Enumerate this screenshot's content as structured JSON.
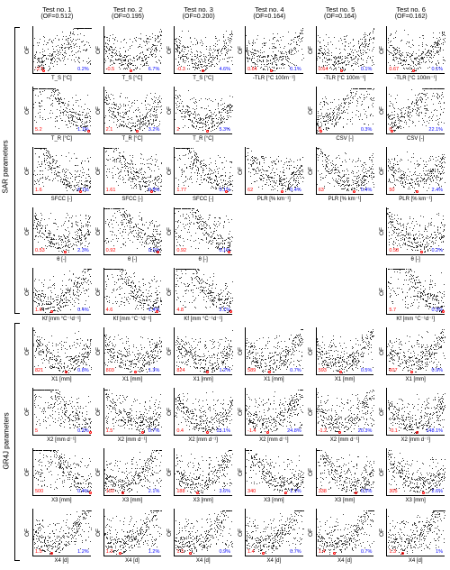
{
  "colors": {
    "red": "#ff0000",
    "blue": "#0000ff",
    "black": "#000000",
    "bg": "#ffffff"
  },
  "font": {
    "header": 7.5,
    "label": 6.5,
    "value": 5.5,
    "tick": 5
  },
  "columns": [
    {
      "title": "Test no. 1",
      "of": "(OF=0.512)"
    },
    {
      "title": "Test no. 2",
      "of": "(OF=0.195)"
    },
    {
      "title": "Test no. 3",
      "of": "(OF=0.200)"
    },
    {
      "title": "Test no. 4",
      "of": "(OF=0.164)"
    },
    {
      "title": "Test no. 5",
      "of": "(OF=0.164)"
    },
    {
      "title": "Test no. 6",
      "of": "(OF=0.162)"
    }
  ],
  "side_groups": [
    {
      "label": "SAR parameters",
      "start_row": 0,
      "end_row": 4
    },
    {
      "label": "GR4J parameters",
      "start_row": 5,
      "end_row": 8
    }
  ],
  "ylabel": "OF",
  "scatter_style": {
    "n_points": 350,
    "shape": "u-funnel"
  },
  "rows": [
    {
      "param": "Ts",
      "cells": [
        {
          "xlabel": "T_S [°C]",
          "red": "-2.5",
          "blue": "0.2%",
          "xlim": [
            -2.5,
            2
          ],
          "ticks": [
            "-2",
            "0",
            "2"
          ],
          "red_pos": 0.15
        },
        {
          "xlabel": "T_S [°C]",
          "red": "-0.5",
          "blue": "6.7%",
          "xlim": [
            -2.5,
            2
          ],
          "ticks": [
            "-2",
            "0",
            "2"
          ],
          "red_pos": 0.45
        },
        {
          "xlabel": "T_S [°C]",
          "red": "-0.3",
          "blue": "4.6%",
          "xlim": [
            -2.5,
            2
          ],
          "ticks": [
            "-2",
            "0",
            "2"
          ],
          "red_pos": 0.47
        },
        {
          "xlabel": "-TLR [°C 100m⁻¹]",
          "red": "0.64",
          "blue": "0.1%",
          "xlim": [
            0,
            1.5
          ],
          "ticks": [
            "0",
            "0.5",
            "1",
            "1.5"
          ],
          "red_pos": 0.42
        },
        {
          "xlabel": "-TLR [°C 100m⁻¹]",
          "red": "0.64",
          "blue": "0.1%",
          "xlim": [
            0,
            1.5
          ],
          "ticks": [
            "0",
            "0.5",
            "1",
            "1.5"
          ],
          "red_pos": 0.42
        },
        {
          "xlabel": "-TLR [°C 100m⁻¹]",
          "red": "0.67",
          "blue": "0.1%",
          "xlim": [
            0,
            1.5
          ],
          "ticks": [
            "0",
            "0.5",
            "1",
            "1.5"
          ],
          "red_pos": 0.44
        }
      ]
    },
    {
      "param": "Tr",
      "cells": [
        {
          "xlabel": "T_R [°C]",
          "red": "5.2",
          "blue": "1.1%",
          "xlim": [
            -2,
            5
          ],
          "ticks": [
            "-2",
            "0",
            "2",
            "4"
          ],
          "red_pos": 0.95
        },
        {
          "xlabel": "T_R [°C]",
          "red": "2.1",
          "blue": "3.2%",
          "xlim": [
            -2,
            5
          ],
          "ticks": [
            "-2",
            "0",
            "2",
            "4"
          ],
          "red_pos": 0.55
        },
        {
          "xlabel": "T_R [°C]",
          "red": "2",
          "blue": "5.3%",
          "xlim": [
            -2,
            5
          ],
          "ticks": [
            "-2",
            "0",
            "2",
            "4"
          ],
          "red_pos": 0.54
        },
        null,
        {
          "xlabel": "CSV [-]",
          "red": "0",
          "blue": "0.3%",
          "xlim": [
            0,
            1
          ],
          "ticks": [
            "0",
            "0.5",
            "1"
          ],
          "red_pos": 0.05
        },
        {
          "xlabel": "CSV [-]",
          "red": "0",
          "blue": "22.1%",
          "xlim": [
            0,
            1
          ],
          "ticks": [
            "0",
            "0.5",
            "1"
          ],
          "red_pos": 0.05
        }
      ]
    },
    {
      "param": "SFCC",
      "cells": [
        {
          "xlabel": "SFCC [-]",
          "red": "1.6",
          "blue": "0.1%",
          "xlim": [
            0,
            2
          ],
          "ticks": [
            "0",
            "1",
            "2"
          ],
          "red_pos": 0.8
        },
        {
          "xlabel": "SFCC [-]",
          "red": "1.61",
          "blue": "0.8%",
          "xlim": [
            0,
            2
          ],
          "ticks": [
            "0",
            "1",
            "2"
          ],
          "red_pos": 0.8
        },
        {
          "xlabel": "SFCC [-]",
          "red": "1.77",
          "blue": "0.1%",
          "xlim": [
            0,
            2
          ],
          "ticks": [
            "0",
            "1",
            "2"
          ],
          "red_pos": 0.87
        },
        {
          "xlabel": "PLR [% km⁻¹]",
          "red": "62",
          "blue": "0.4%",
          "xlim": [
            0,
            100
          ],
          "ticks": [
            "0",
            "50",
            "100"
          ],
          "red_pos": 0.62
        },
        {
          "xlabel": "PLR [% km⁻¹]",
          "red": "63",
          "blue": "0.4%",
          "xlim": [
            0,
            100
          ],
          "ticks": [
            "0",
            "50",
            "100"
          ],
          "red_pos": 0.63
        },
        {
          "xlabel": "PLR [% km⁻¹]",
          "red": "50",
          "blue": "2.4%",
          "xlim": [
            0,
            100
          ],
          "ticks": [
            "0",
            "50",
            "100"
          ],
          "red_pos": 0.5
        }
      ]
    },
    {
      "param": "theta",
      "cells": [
        {
          "xlabel": "θ [-]",
          "red": "0.53",
          "blue": "2.3%",
          "xlim": [
            0,
            1
          ],
          "ticks": [
            "0",
            "0.5",
            "1"
          ],
          "red_pos": 0.53
        },
        {
          "xlabel": "θ [-]",
          "red": "0.92",
          "blue": "0.1%",
          "xlim": [
            0,
            1
          ],
          "ticks": [
            "0",
            "0.5",
            "1"
          ],
          "red_pos": 0.92
        },
        {
          "xlabel": "θ [-]",
          "red": "0.92",
          "blue": "0.1%",
          "xlim": [
            0,
            1
          ],
          "ticks": [
            "0",
            "0.5",
            "1"
          ],
          "red_pos": 0.92
        },
        null,
        null,
        {
          "xlabel": "θ [-]",
          "red": "0.58",
          "blue": "0.2%",
          "xlim": [
            0,
            1
          ],
          "ticks": [
            "0",
            "0.5",
            "1"
          ],
          "red_pos": 0.58
        }
      ]
    },
    {
      "param": "Kf",
      "cells": [
        {
          "xlabel": "Kf [mm °C⁻¹d⁻¹]",
          "red": "1.6",
          "blue": "0.4%",
          "xlim": [
            0,
            5
          ],
          "ticks": [
            "0",
            "5"
          ],
          "red_pos": 0.3
        },
        {
          "xlabel": "Kf [mm °C⁻¹d⁻¹]",
          "red": "4.6",
          "blue": "1.4%",
          "xlim": [
            0,
            5
          ],
          "ticks": [
            "0",
            "5"
          ],
          "red_pos": 0.9
        },
        {
          "xlabel": "Kf [mm °C⁻¹d⁻¹]",
          "red": "4.8",
          "blue": "2.1%",
          "xlim": [
            0,
            5
          ],
          "ticks": [
            "0",
            "5"
          ],
          "red_pos": 0.95
        },
        null,
        null,
        {
          "xlabel": "Kf [mm °C⁻¹d⁻¹]",
          "red": "5.7",
          "blue": "0.5%",
          "xlim": [
            0,
            5
          ],
          "ticks": [
            "0",
            "5"
          ],
          "red_pos": 0.95
        }
      ]
    },
    {
      "param": "X1",
      "cells": [
        {
          "xlabel": "X1 [mm]",
          "red": "821",
          "blue": "0.8%",
          "xlim": [
            0,
            1500
          ],
          "ticks": [
            "0",
            "500",
            "1000",
            "1500"
          ],
          "red_pos": 0.55
        },
        {
          "xlabel": "X1 [mm]",
          "red": "803",
          "blue": "1.3%",
          "xlim": [
            0,
            1500
          ],
          "ticks": [
            "0",
            "500",
            "1000",
            "1500"
          ],
          "red_pos": 0.53
        },
        {
          "xlabel": "X1 [mm]",
          "red": "824",
          "blue": "1.2%",
          "xlim": [
            0,
            1500
          ],
          "ticks": [
            "0",
            "500",
            "1000",
            "1500"
          ],
          "red_pos": 0.55
        },
        {
          "xlabel": "X1 [mm]",
          "red": "589",
          "blue": "0.7%",
          "xlim": [
            0,
            1500
          ],
          "ticks": [
            "0",
            "500",
            "1000",
            "1500"
          ],
          "red_pos": 0.39
        },
        {
          "xlabel": "X1 [mm]",
          "red": "593",
          "blue": "0.5%",
          "xlim": [
            0,
            1500
          ],
          "ticks": [
            "0",
            "500",
            "1000",
            "1500"
          ],
          "red_pos": 0.4
        },
        {
          "xlabel": "X1 [mm]",
          "red": "607",
          "blue": "0.9%",
          "xlim": [
            0,
            1500
          ],
          "ticks": [
            "0",
            "500",
            "1000",
            "1500"
          ],
          "red_pos": 0.4
        }
      ]
    },
    {
      "param": "X2",
      "cells": [
        {
          "xlabel": "X2 [mm d⁻¹]",
          "red": "5",
          "blue": "0.2%",
          "xlim": [
            -5,
            5
          ],
          "ticks": [
            "-5",
            "0",
            "5"
          ],
          "red_pos": 0.98
        },
        {
          "xlabel": "X2 [mm d⁻¹]",
          "red": "1.5",
          "blue": "0.7%",
          "xlim": [
            -5,
            5
          ],
          "ticks": [
            "-5",
            "0",
            "5"
          ],
          "red_pos": 0.65
        },
        {
          "xlabel": "X2 [mm d⁻¹]",
          "red": "0.4",
          "blue": "15.1%",
          "xlim": [
            -5,
            5
          ],
          "ticks": [
            "-5",
            "0",
            "5"
          ],
          "red_pos": 0.54
        },
        {
          "xlabel": "X2 [mm d⁻¹]",
          "red": "-1.4",
          "blue": "24.8%",
          "xlim": [
            -5,
            5
          ],
          "ticks": [
            "-5",
            "0",
            "5"
          ],
          "red_pos": 0.36
        },
        {
          "xlabel": "X2 [mm d⁻¹]",
          "red": "-1.2",
          "blue": "20.3%",
          "xlim": [
            -5,
            5
          ],
          "ticks": [
            "-5",
            "0",
            "5"
          ],
          "red_pos": 0.38
        },
        {
          "xlabel": "X2 [mm d⁻¹]",
          "red": "-0.1",
          "blue": "148.1%",
          "xlim": [
            -5,
            5
          ],
          "ticks": [
            "-5",
            "0",
            "5"
          ],
          "red_pos": 0.49
        }
      ]
    },
    {
      "param": "X3",
      "cells": [
        {
          "xlabel": "X3 [mm]",
          "red": "500",
          "blue": "0.4%",
          "xlim": [
            0,
            500
          ],
          "ticks": [
            "0",
            "500"
          ],
          "red_pos": 0.98
        },
        {
          "xlabel": "X3 [mm]",
          "red": "150",
          "blue": "2.1%",
          "xlim": [
            0,
            500
          ],
          "ticks": [
            "0",
            "500"
          ],
          "red_pos": 0.3
        },
        {
          "xlabel": "X3 [mm]",
          "red": "188",
          "blue": "3.6%",
          "xlim": [
            0,
            500
          ],
          "ticks": [
            "0",
            "500"
          ],
          "red_pos": 0.37
        },
        {
          "xlabel": "X3 [mm]",
          "red": "340",
          "blue": "1.1%",
          "xlim": [
            0,
            500
          ],
          "ticks": [
            "0",
            "500"
          ],
          "red_pos": 0.68
        },
        {
          "xlabel": "X3 [mm]",
          "red": "338",
          "blue": "0.5%",
          "xlim": [
            0,
            500
          ],
          "ticks": [
            "0",
            "500"
          ],
          "red_pos": 0.67
        },
        {
          "xlabel": "X3 [mm]",
          "red": "305",
          "blue": "2.6%",
          "xlim": [
            0,
            500
          ],
          "ticks": [
            "0",
            "500"
          ],
          "red_pos": 0.61
        }
      ]
    },
    {
      "param": "X4",
      "cells": [
        {
          "xlabel": "X4 [d]",
          "red": "1.5",
          "blue": "1.2%",
          "xlim": [
            0,
            5
          ],
          "ticks": [
            "1",
            "2",
            "3",
            "4",
            "5"
          ],
          "red_pos": 0.3
        },
        {
          "xlabel": "X4 [d]",
          "red": "1.3",
          "blue": "1.2%",
          "xlim": [
            0,
            5
          ],
          "ticks": [
            "1",
            "2",
            "3",
            "4",
            "5"
          ],
          "red_pos": 0.25
        },
        {
          "xlabel": "X4 [d]",
          "red": "1.3",
          "blue": "0.9%",
          "xlim": [
            0,
            5
          ],
          "ticks": [
            "1",
            "2",
            "3",
            "4",
            "5"
          ],
          "red_pos": 0.25
        },
        {
          "xlabel": "X4 [d]",
          "red": "1.4",
          "blue": "0.7%",
          "xlim": [
            0,
            5
          ],
          "ticks": [
            "1",
            "2",
            "3",
            "4",
            "5"
          ],
          "red_pos": 0.28
        },
        {
          "xlabel": "X4 [d]",
          "red": "1.4",
          "blue": "0.7%",
          "xlim": [
            0,
            5
          ],
          "ticks": [
            "1",
            "2",
            "3",
            "4",
            "5"
          ],
          "red_pos": 0.28
        },
        {
          "xlabel": "X4 [d]",
          "red": "1.3",
          "blue": "1%",
          "xlim": [
            0,
            5
          ],
          "ticks": [
            "1",
            "2",
            "3",
            "4",
            "5"
          ],
          "red_pos": 0.25
        }
      ]
    }
  ]
}
